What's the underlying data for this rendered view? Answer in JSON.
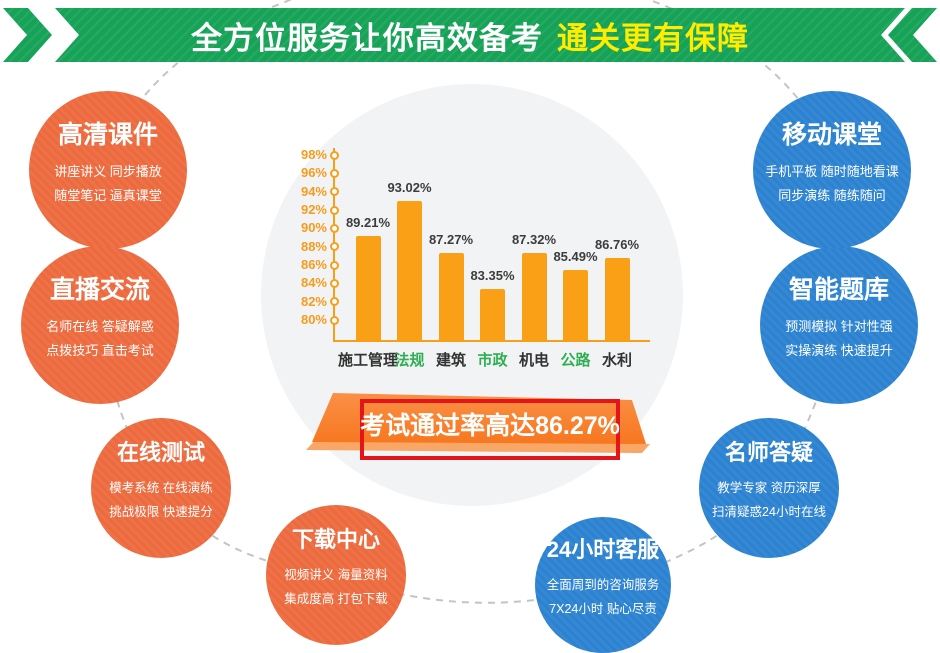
{
  "header": {
    "title_main": "全方位服务让你高效备考",
    "title_accent": "通关更有保障",
    "bg_color": "#17a357",
    "accent_text_color": "#ffec00"
  },
  "services": [
    {
      "id": "hd-courseware",
      "title": "高清课件",
      "line1": "讲座讲义 同步播放",
      "line2": "随堂笔记 逼真课堂",
      "color": "orange"
    },
    {
      "id": "live-interaction",
      "title": "直播交流",
      "line1": "名师在线 答疑解惑",
      "line2": "点拨技巧 直击考试",
      "color": "orange"
    },
    {
      "id": "online-test",
      "title": "在线测试",
      "line1": "模考系统 在线演练",
      "line2": "挑战极限 快速提分",
      "color": "orange"
    },
    {
      "id": "download-center",
      "title": "下载中心",
      "line1": "视频讲义 海量资料",
      "line2": "集成度高 打包下载",
      "color": "orange"
    },
    {
      "id": "customer-service-24h",
      "title": "24小时客服",
      "line1": "全面周到的咨询服务",
      "line2": "7X24小时 贴心尽责",
      "color": "blue"
    },
    {
      "id": "teacher-qa",
      "title": "名师答疑",
      "line1": "教学专家 资历深厚",
      "line2": "扫清疑惑24小时在线",
      "color": "blue"
    },
    {
      "id": "smart-question-bank",
      "title": "智能题库",
      "line1": "预测模拟 针对性强",
      "line2": "实操演练 快速提升",
      "color": "blue"
    },
    {
      "id": "mobile-classroom",
      "title": "移动课堂",
      "line1": "手机平板 随时随地看课",
      "line2": "同步演练 随练随问",
      "color": "blue"
    }
  ],
  "chart_data": {
    "type": "bar",
    "title": "",
    "categories": [
      "施工管理",
      "法规",
      "建筑",
      "市政",
      "机电",
      "公路",
      "水利"
    ],
    "values": [
      89.21,
      93.02,
      87.27,
      83.35,
      87.32,
      85.49,
      86.76
    ],
    "value_labels": [
      "89.21%",
      "93.02%",
      "87.27%",
      "83.35%",
      "87.32%",
      "85.49%",
      "86.76%"
    ],
    "category_colors": [
      "#333333",
      "#2fae54",
      "#333333",
      "#2fae54",
      "#333333",
      "#2fae54",
      "#333333"
    ],
    "y_ticks": [
      "98%",
      "96%",
      "94%",
      "92%",
      "90%",
      "88%",
      "86%",
      "84%",
      "82%",
      "80%"
    ],
    "ylim": [
      80,
      98
    ],
    "xlabel": "",
    "ylabel": "",
    "grid": false,
    "legend": false,
    "bar_color": "#faa017",
    "axis_color": "#f5a018"
  },
  "banner": {
    "text": "考试通过率高达86.27%",
    "fill_color": "#f87e30",
    "border_color": "#e2151a"
  },
  "colors": {
    "orange_bubble": "#ec6a3e",
    "blue_bubble": "#2b82d0",
    "disc_gray": "#f2f3f4",
    "dash_gray": "#c4c4c4"
  }
}
